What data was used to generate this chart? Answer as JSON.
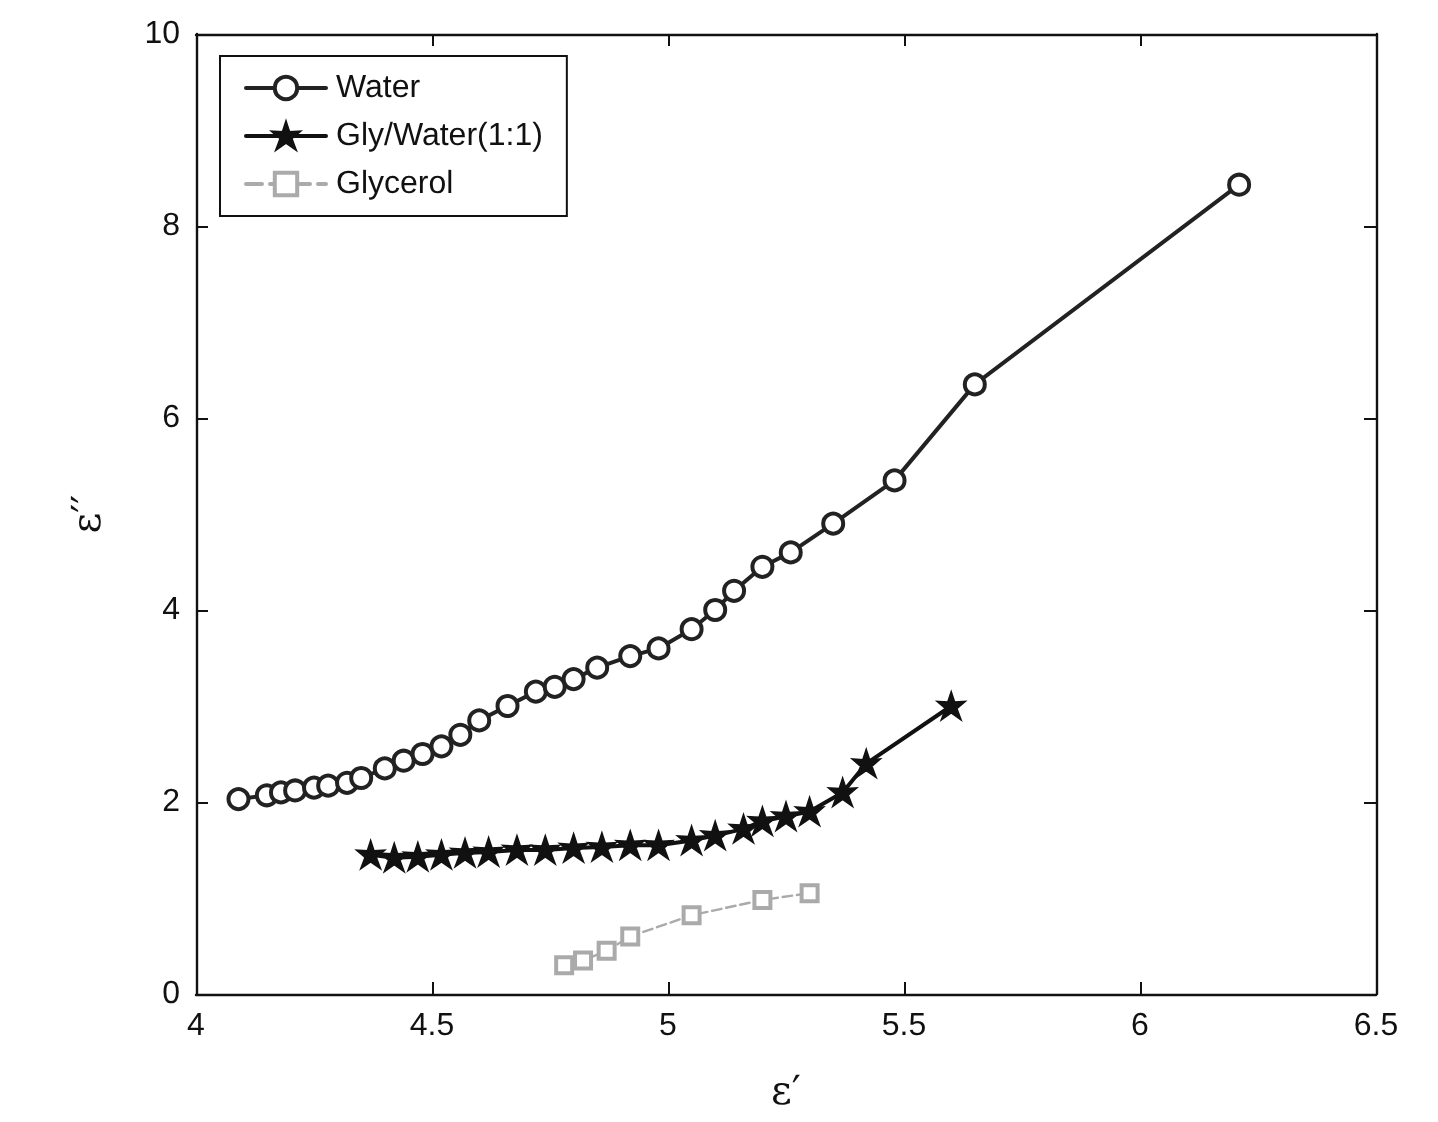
{
  "chart_data": {
    "type": "line",
    "xlabel": "ε′",
    "ylabel": "ε′′",
    "xlim": [
      4,
      6.5
    ],
    "xticks": [
      4,
      4.5,
      5,
      5.5,
      6,
      6.5
    ],
    "ylim": [
      0,
      10
    ],
    "yticks": [
      0,
      2,
      4,
      6,
      8,
      10
    ],
    "grid": false,
    "legend": "top left",
    "series": [
      {
        "name": "Water",
        "color": "#222222",
        "marker": "circle",
        "line_style": "solid",
        "x": [
          4.09,
          4.15,
          4.18,
          4.21,
          4.25,
          4.28,
          4.32,
          4.35,
          4.4,
          4.44,
          4.48,
          4.52,
          4.56,
          4.6,
          4.66,
          4.72,
          4.76,
          4.8,
          4.85,
          4.92,
          4.98,
          5.05,
          5.1,
          5.14,
          5.2,
          5.26,
          5.35,
          5.48,
          5.65,
          6.21
        ],
        "values": [
          2.03,
          2.07,
          2.1,
          2.12,
          2.15,
          2.17,
          2.2,
          2.25,
          2.35,
          2.43,
          2.5,
          2.58,
          2.7,
          2.85,
          3.0,
          3.15,
          3.2,
          3.28,
          3.4,
          3.52,
          3.6,
          3.8,
          4.0,
          4.2,
          4.45,
          4.6,
          4.9,
          5.35,
          6.35,
          8.43
        ]
      },
      {
        "name": "Gly/Water(1:1)",
        "color": "#111111",
        "marker": "star",
        "line_style": "solid",
        "x": [
          4.37,
          4.42,
          4.47,
          4.52,
          4.57,
          4.62,
          4.68,
          4.74,
          4.8,
          4.86,
          4.92,
          4.98,
          5.05,
          5.1,
          5.16,
          5.2,
          5.25,
          5.3,
          5.37,
          5.42,
          5.6
        ],
        "values": [
          1.45,
          1.42,
          1.43,
          1.45,
          1.47,
          1.48,
          1.5,
          1.5,
          1.52,
          1.53,
          1.55,
          1.55,
          1.6,
          1.65,
          1.72,
          1.8,
          1.85,
          1.9,
          2.1,
          2.4,
          3.0
        ]
      },
      {
        "name": "Glycerol",
        "color": "#aaaaaa",
        "marker": "square",
        "line_style": "dashed",
        "x": [
          4.78,
          4.82,
          4.87,
          4.92,
          5.05,
          5.2,
          5.3
        ],
        "values": [
          0.3,
          0.35,
          0.45,
          0.6,
          0.82,
          0.98,
          1.05
        ]
      }
    ]
  }
}
